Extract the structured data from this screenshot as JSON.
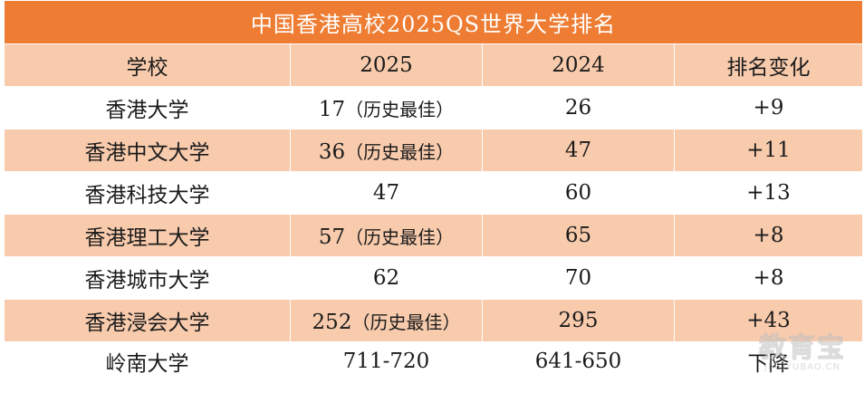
{
  "table": {
    "title": "中国香港高校2025QS世界大学排名",
    "headers": {
      "school": "学校",
      "rank_2025": "2025",
      "rank_2024": "2024",
      "change": "排名变化"
    },
    "rows": [
      {
        "school": "香港大学",
        "rank_2025": "17",
        "note": "（历史最佳）",
        "rank_2024": "26",
        "change": "+9"
      },
      {
        "school": "香港中文大学",
        "rank_2025": "36",
        "note": "（历史最佳）",
        "rank_2024": "47",
        "change": "+11"
      },
      {
        "school": "香港科技大学",
        "rank_2025": "47",
        "note": "",
        "rank_2024": "60",
        "change": "+13"
      },
      {
        "school": "香港理工大学",
        "rank_2025": "57",
        "note": "（历史最佳）",
        "rank_2024": "65",
        "change": "+8"
      },
      {
        "school": "香港城市大学",
        "rank_2025": "62",
        "note": "",
        "rank_2024": "70",
        "change": "+8"
      },
      {
        "school": "香港浸会大学",
        "rank_2025": "252",
        "note": "（历史最佳）",
        "rank_2024": "295",
        "change": "+43"
      },
      {
        "school": "岭南大学",
        "rank_2025": "711-720",
        "note": "",
        "rank_2024": "641-650",
        "change": "下降"
      }
    ]
  },
  "watermark": {
    "main": "教育宝",
    "sub": "JIAOYUBAO.CN"
  },
  "colors": {
    "title_bg": "#ee7d33",
    "stripe_bg": "#f8cbad",
    "row_bg": "#ffffff"
  }
}
